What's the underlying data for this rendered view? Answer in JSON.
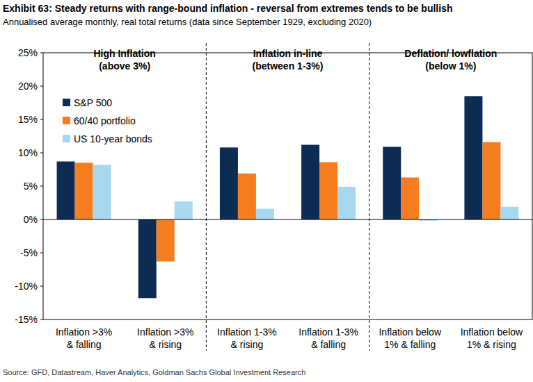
{
  "chart_data": {
    "type": "bar",
    "title": "Exhibit 63: Steady returns with range-bound inflation - reversal from extremes tends to be bullish",
    "subtitle": "Annualised average monthly, real total returns (data since September 1929, excluding 2020)",
    "source": "Source: GFD, Datastream, Haver Analytics, Goldman Sachs Global Investment Research",
    "annotations": [
      "High Inflation\n(above 3%)",
      "Inflation in-line\n(between 1-3%)",
      "Deflation/ lowflation\n(below 1%)"
    ],
    "categories": [
      "Inflation >3%\n& falling",
      "Inflation >3%\n& rising",
      "Inflation 1-3%\n& rising",
      "Inflation 1-3%\n& falling",
      "Inflation below\n1% & falling",
      "Inflation below\n1% & rising"
    ],
    "series": [
      {
        "name": "S&P 500",
        "color": "#0c2c54",
        "values": [
          8.7,
          -11.8,
          10.8,
          11.2,
          10.9,
          18.5
        ]
      },
      {
        "name": "60/40 portfolio",
        "color": "#f47d20",
        "values": [
          8.5,
          -6.3,
          6.9,
          8.6,
          6.3,
          11.6
        ]
      },
      {
        "name": "US 10-year bonds",
        "color": "#a8d8f0",
        "values": [
          8.2,
          2.7,
          1.6,
          4.9,
          -0.2,
          1.9
        ]
      }
    ],
    "ylim": [
      -15,
      25
    ],
    "yticks": [
      {
        "value": -15,
        "label": "-15%"
      },
      {
        "value": -10,
        "label": "-10%"
      },
      {
        "value": -5,
        "label": "-5%"
      },
      {
        "value": 0,
        "label": "0%"
      },
      {
        "value": 5,
        "label": "5%"
      },
      {
        "value": 10,
        "label": "10%"
      },
      {
        "value": 15,
        "label": "15%"
      },
      {
        "value": 20,
        "label": "20%"
      },
      {
        "value": 25,
        "label": "25%"
      }
    ],
    "grid": false,
    "legend": "top-left"
  }
}
